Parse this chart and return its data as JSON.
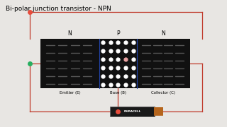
{
  "title": "Bi-polar junction transistor - NPN",
  "title_fontsize": 6.5,
  "bg_color": "#e8e6e3",
  "transistor_bg": "#111111",
  "wire_color": "#c0392b",
  "wire_lw": 0.9,
  "dot_color_red": "#e74c3c",
  "dot_color_green": "#27ae60",
  "divider_color": "#2244aa",
  "emitter_label": "Emitter (E)",
  "base_label": "Base (B)",
  "collector_label": "Collector (C)",
  "N_label": "N",
  "P_label": "P",
  "dash_color": "#555555",
  "white_dot_color": "#ffffff",
  "pink_dot_color": "#e8a0a0"
}
